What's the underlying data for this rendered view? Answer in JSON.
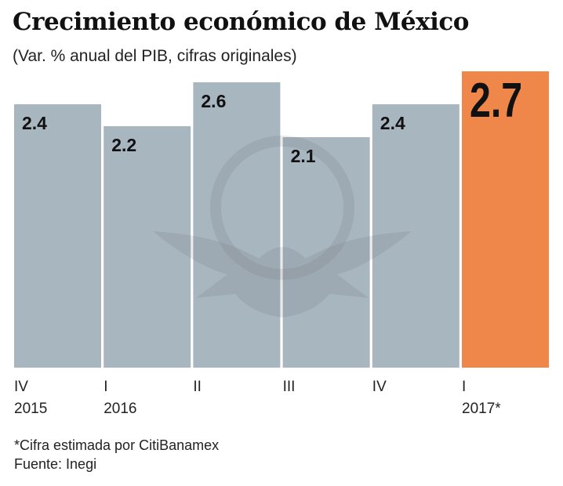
{
  "chart_data": {
    "type": "bar",
    "title": "Crecimiento económico de México",
    "subtitle": "(Var. % anual del PIB, cifras originales)",
    "categories": [
      {
        "quarter": "IV",
        "year": "2015"
      },
      {
        "quarter": "I",
        "year": "2016"
      },
      {
        "quarter": "II",
        "year": ""
      },
      {
        "quarter": "III",
        "year": ""
      },
      {
        "quarter": "IV",
        "year": ""
      },
      {
        "quarter": "I",
        "year": "2017*"
      }
    ],
    "values": [
      2.4,
      2.2,
      2.6,
      2.1,
      2.4,
      2.7
    ],
    "data_labels": [
      "2.4",
      "2.2",
      "2.6",
      "2.1",
      "2.4",
      "2.7"
    ],
    "ylim": [
      0,
      2.7
    ],
    "grid": false,
    "colors": {
      "bar": "#a8b6c0",
      "highlight": "#f0874a"
    },
    "highlighted_index": 5,
    "footnote": "*Cifra estimada por CitiBanamex",
    "source": "Fuente: Inegi"
  }
}
